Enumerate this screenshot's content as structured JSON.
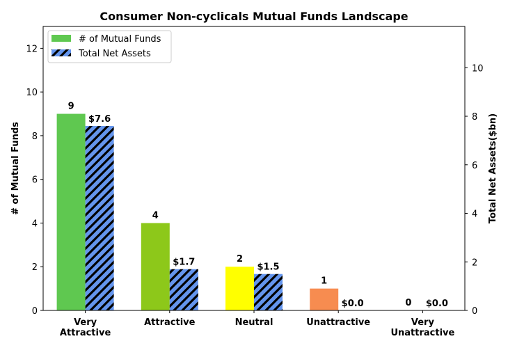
{
  "chart_data": {
    "type": "bar",
    "title": "Consumer Non-cyclicals Mutual Funds Landscape",
    "categories": [
      "Very Attractive",
      "Attractive",
      "Neutral",
      "Unattractive",
      "Very Unattractive"
    ],
    "category_lines": [
      [
        "Very",
        "Attractive"
      ],
      [
        "Attractive"
      ],
      [
        "Neutral"
      ],
      [
        "Unattractive"
      ],
      [
        "Very",
        "Unattractive"
      ]
    ],
    "ylabel": "# of Mutual Funds",
    "y2label": "Total Net Assets($bn)",
    "ylim": [
      0,
      13
    ],
    "y2lim": [
      0,
      11.7
    ],
    "yticks": [
      0,
      2,
      4,
      6,
      8,
      10,
      12
    ],
    "y2ticks": [
      0,
      2,
      4,
      6,
      8,
      10
    ],
    "series": [
      {
        "name": "# of Mutual Funds",
        "axis": "left",
        "values": [
          9,
          4,
          2,
          1,
          0
        ],
        "labels": [
          "9",
          "4",
          "2",
          "1",
          "0"
        ],
        "colors": [
          "#5fc850",
          "#8dc81a",
          "#ffff00",
          "#f78c50",
          "#cccccc"
        ]
      },
      {
        "name": "Total Net Assets",
        "axis": "right",
        "values": [
          7.6,
          1.7,
          1.5,
          0.0,
          0.0
        ],
        "labels": [
          "$7.6",
          "$1.7",
          "$1.5",
          "$0.0",
          "$0.0"
        ],
        "color": "#6495ed",
        "hatch": "diagonal"
      }
    ],
    "legend_position": "top-left",
    "grid": false
  }
}
